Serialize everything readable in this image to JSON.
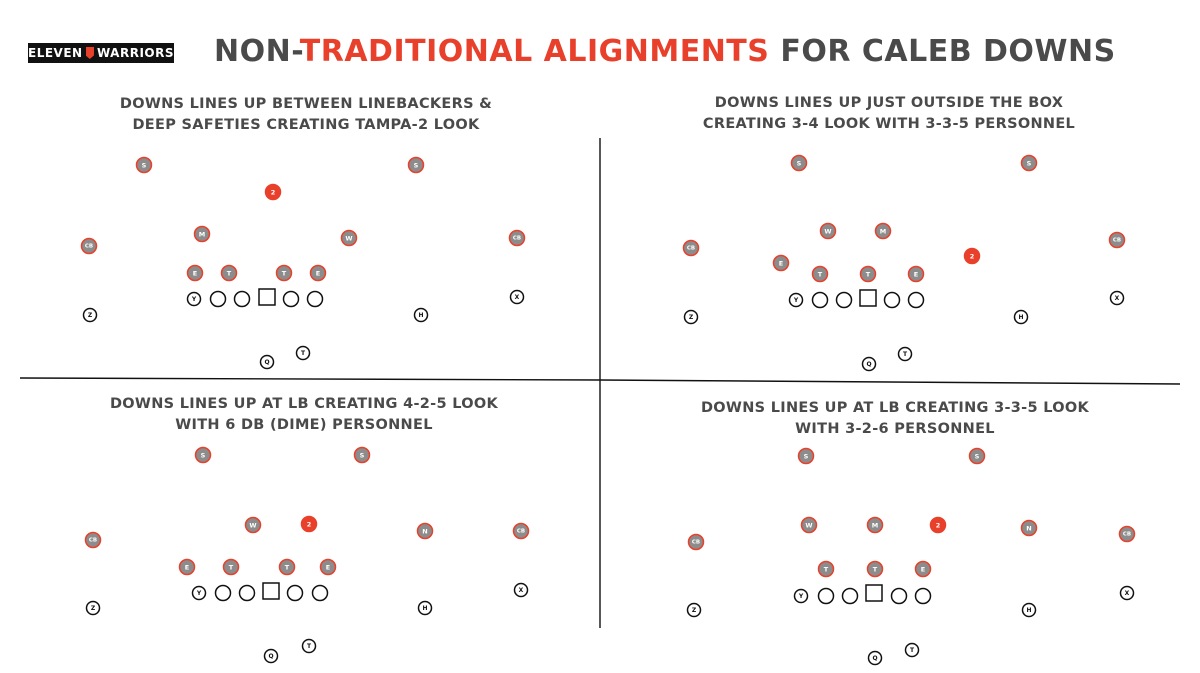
{
  "header": {
    "logo_left": "ELEVEN",
    "logo_right": "WARRIORS",
    "title_pre": "NON-",
    "title_highlight": "TRADITIONAL ALIGNMENTS",
    "title_post": " FOR CALEB DOWNS"
  },
  "colors": {
    "accent": "#e8402a",
    "defender_fill": "#8c8c8c",
    "defender_stroke": "#e8402a",
    "text": "#4a4a4a",
    "line": "#111111"
  },
  "panels": [
    {
      "title_lines": [
        "DOWNS LINES UP BETWEEN LINEBACKERS &",
        "DEEP SAFETIES CREATING TAMPA-2 LOOK"
      ],
      "defense": [
        "S",
        "S",
        "2",
        "M",
        "W",
        "CB",
        "CB",
        "E",
        "T",
        "T",
        "E"
      ],
      "offense": [
        "Y",
        "",
        "",
        "",
        "",
        "",
        "Z",
        "H",
        "X",
        "Q",
        "T"
      ]
    },
    {
      "title_lines": [
        "DOWNS LINES UP JUST OUTSIDE THE BOX",
        "CREATING 3-4 LOOK WITH 3-3-5 PERSONNEL"
      ],
      "defense": [
        "S",
        "S",
        "W",
        "M",
        "CB",
        "CB",
        "2",
        "E",
        "T",
        "T",
        "E"
      ],
      "offense": [
        "Y",
        "",
        "",
        "",
        "",
        "",
        "Z",
        "H",
        "X",
        "Q",
        "T"
      ]
    },
    {
      "title_lines": [
        "DOWNS LINES UP AT LB CREATING 4-2-5 LOOK",
        "WITH 6 DB (DIME) PERSONNEL"
      ],
      "defense": [
        "S",
        "S",
        "CB",
        "CB",
        "W",
        "2",
        "N",
        "E",
        "T",
        "T",
        "E"
      ],
      "offense": [
        "Y",
        "",
        "",
        "",
        "",
        "",
        "Z",
        "H",
        "X",
        "Q",
        "T"
      ]
    },
    {
      "title_lines": [
        "DOWNS LINES UP AT LB CREATING 3-3-5 LOOK",
        "WITH 3-2-6 PERSONNEL"
      ],
      "defense": [
        "S",
        "S",
        "CB",
        "CB",
        "W",
        "M",
        "2",
        "N",
        "T",
        "T",
        "E"
      ],
      "offense": [
        "Y",
        "",
        "",
        "",
        "",
        "",
        "Z",
        "H",
        "X",
        "Q",
        "T"
      ]
    }
  ]
}
